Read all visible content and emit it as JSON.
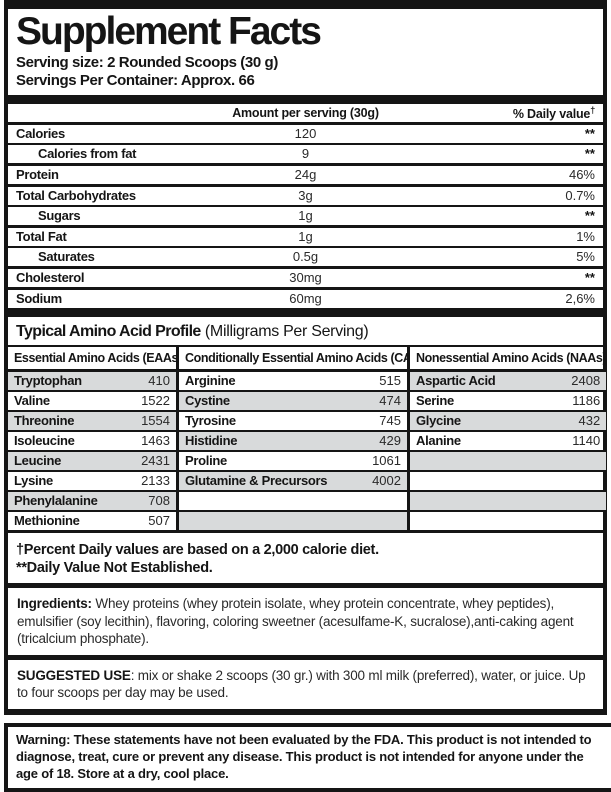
{
  "header": {
    "title": "Supplement Facts",
    "serving_size": "Serving size: 2 Rounded Scoops (30 g)",
    "servings_per_container": "Servings Per Container: Approx. 66"
  },
  "nutrition_table": {
    "col_amount": "Amount per serving (30g)",
    "col_dv": "% Daily value",
    "dv_dagger": "†",
    "rows": [
      {
        "label": "Calories",
        "amount": "120",
        "dv": "**"
      },
      {
        "label": "Calories from fat",
        "amount": "9",
        "dv": "**"
      },
      {
        "label": "Protein",
        "amount": "24g",
        "dv": "46%"
      },
      {
        "label": "Total Carbohydrates",
        "amount": "3g",
        "dv": "0.7%"
      },
      {
        "label": "Sugars",
        "amount": "1g",
        "dv": "**"
      },
      {
        "label": "Total Fat",
        "amount": "1g",
        "dv": "1%"
      },
      {
        "label": "Saturates",
        "amount": "0.5g",
        "dv": "5%"
      },
      {
        "label": "Cholesterol",
        "amount": "30mg",
        "dv": "**"
      },
      {
        "label": "Sodium",
        "amount": "60mg",
        "dv": "2,6%"
      }
    ]
  },
  "amino_profile": {
    "title": "Typical Amino Acid Profile",
    "subtitle": "(Milligrams Per Serving)",
    "columns": [
      {
        "header": "Essential Amino Acids (EAAs)",
        "rows": [
          {
            "name": "Tryptophan",
            "value": "410"
          },
          {
            "name": "Valine",
            "value": "1522"
          },
          {
            "name": "Threonine",
            "value": "1554"
          },
          {
            "name": "Isoleucine",
            "value": "1463"
          },
          {
            "name": "Leucine",
            "value": "2431"
          },
          {
            "name": "Lysine",
            "value": "2133"
          },
          {
            "name": "Phenylalanine",
            "value": "708"
          },
          {
            "name": "Methionine",
            "value": "507"
          }
        ]
      },
      {
        "header": "Conditionally Essential Amino Acids (CAAs)",
        "rows": [
          {
            "name": "Arginine",
            "value": "515"
          },
          {
            "name": "Cystine",
            "value": "474"
          },
          {
            "name": "Tyrosine",
            "value": "745"
          },
          {
            "name": "Histidine",
            "value": "429"
          },
          {
            "name": "Proline",
            "value": "1061"
          },
          {
            "name": "Glutamine & Precursors",
            "value": "4002"
          },
          {
            "name": "",
            "value": ""
          },
          {
            "name": "",
            "value": ""
          }
        ]
      },
      {
        "header": "Nonessential Amino Acids (NAAs)",
        "rows": [
          {
            "name": "Aspartic Acid",
            "value": "2408"
          },
          {
            "name": "Serine",
            "value": "1186"
          },
          {
            "name": "Glycine",
            "value": "432"
          },
          {
            "name": "Alanine",
            "value": "1140"
          },
          {
            "name": "",
            "value": ""
          },
          {
            "name": "",
            "value": ""
          },
          {
            "name": "",
            "value": ""
          },
          {
            "name": "",
            "value": ""
          }
        ]
      }
    ]
  },
  "footnotes": {
    "line1": "†Percent Daily values are based on a 2,000 calorie diet.",
    "line2": "**Daily Value Not Established."
  },
  "ingredients": {
    "label": "Ingredients:",
    "text": " Whey proteins (whey protein isolate, whey protein concentrate, whey peptides), emulsifier (soy lecithin), flavoring, coloring sweetner (acesulfame-K, sucralose),anti-caking agent (tricalcium phosphate)."
  },
  "suggested_use": {
    "label": "SUGGESTED USE",
    "text": ": mix or shake 2 scoops (30 gr.) with 300 ml milk (preferred), water, or juice. Up to four scoops per day may be used."
  },
  "warning": {
    "text": "Warning: These statements have not been evaluated by the FDA. This product is not intended to diagnose, treat, cure or prevent any disease. This product is not intended for anyone under the age of 18. Store at a dry, cool place."
  },
  "colors": {
    "shaded_row": "#d8dadb",
    "ink": "#151515"
  }
}
